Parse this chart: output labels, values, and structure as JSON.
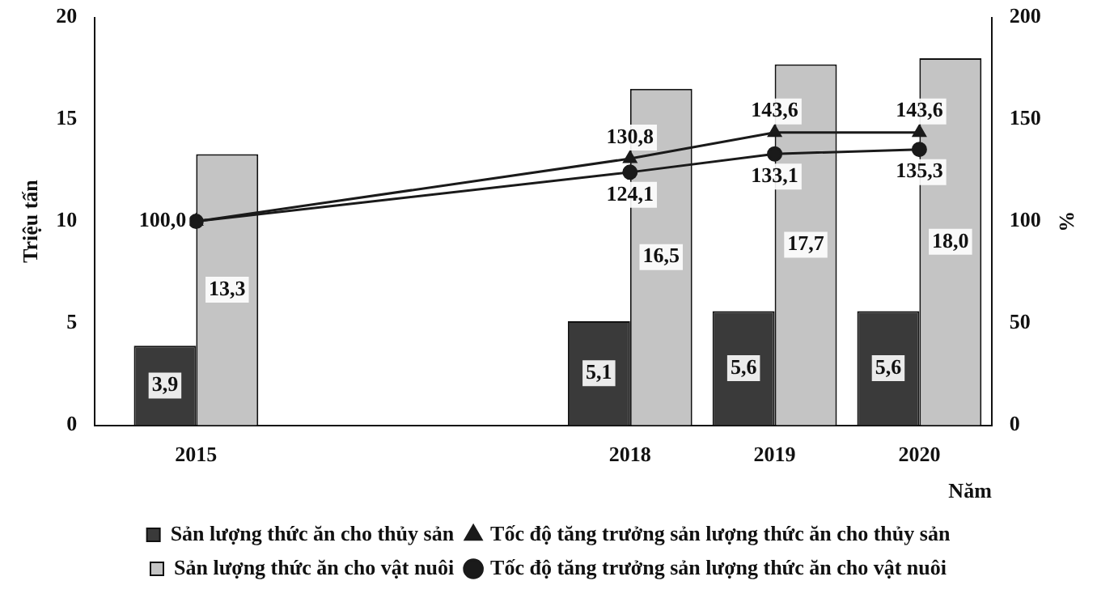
{
  "chart_data": {
    "type": "bar",
    "ylabel": "Triệu tấn",
    "y2label": "%",
    "xlabel": "Năm",
    "x": [
      2015,
      2018,
      2019,
      2020
    ],
    "xlim": [
      2014.3,
      2020.5
    ],
    "xticks": [
      2015,
      2018,
      2019,
      2020
    ],
    "ylim": [
      0,
      20
    ],
    "yticks": [
      0,
      5,
      10,
      15,
      20
    ],
    "y2lim": [
      0,
      200
    ],
    "y2ticks": [
      0,
      50,
      100,
      150,
      200
    ],
    "grid": false,
    "legend": "bottom",
    "series": [
      {
        "name": "Sản lượng thức ăn cho thủy sản",
        "color": "#3a3a3a",
        "values": [
          3.9,
          5.1,
          5.6,
          5.6
        ],
        "value_labels": [
          "3,9",
          "5,1",
          "5,6",
          "5,6"
        ]
      },
      {
        "name": "Sản lượng thức ăn cho vật nuôi",
        "color": "#c4c4c4",
        "values": [
          13.3,
          16.5,
          17.7,
          18.0
        ],
        "value_labels": [
          "13,3",
          "16,5",
          "17,7",
          "18,0"
        ]
      },
      {
        "name": "Tốc độ tăng trưởng sản lượng thức ăn cho thủy sản",
        "type": "line",
        "axis": "y2",
        "color": "#1a1a1a",
        "marker": "triangle",
        "values": [
          100.0,
          130.8,
          143.6,
          143.6
        ],
        "value_labels": [
          "100,0",
          "130,8",
          "143,6",
          "143,6"
        ]
      },
      {
        "name": "Tốc độ tăng trưởng sản lượng thức ăn cho vật nuôi",
        "type": "line",
        "axis": "y2",
        "color": "#1a1a1a",
        "marker": "circle",
        "values": [
          100.0,
          124.1,
          133.1,
          135.3
        ],
        "value_labels": [
          null,
          "124,1",
          "133,1",
          "135,3"
        ]
      }
    ]
  }
}
